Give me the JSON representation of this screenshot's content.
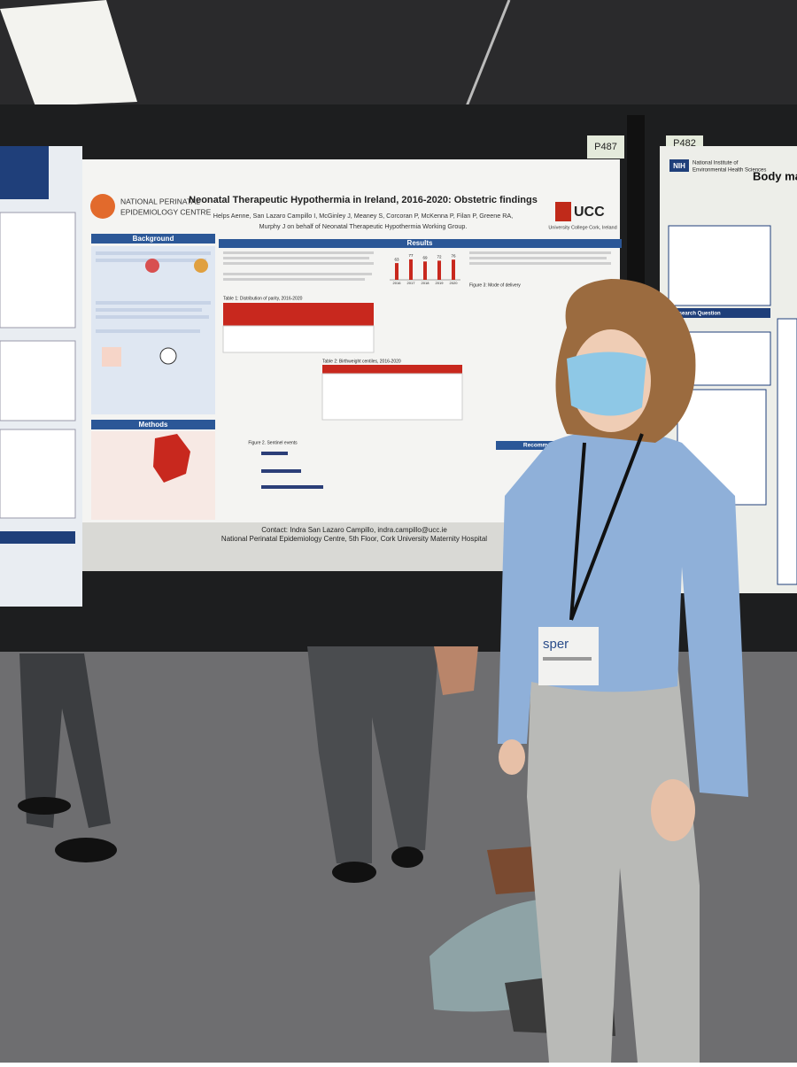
{
  "board_labels": [
    "P487",
    "P482"
  ],
  "poster": {
    "logo_left": [
      "NATIONAL PERINATAL",
      "EPIDEMIOLOGY CENTRE"
    ],
    "title": "Neonatal Therapeutic Hypothermia in Ireland, 2016-2020: Obstetric findings",
    "authors": [
      "Helps Aenne, San Lazaro Campillo I, McGinley J, Meaney S, Corcoran P, McKenna P, Filan P, Greene RA,",
      "Murphy J on behalf of Neonatal Therapeutic Hypothermia Working Group."
    ],
    "logo_right": "UCC",
    "logo_right_sub": "University College Cork, Ireland",
    "sections": {
      "background": "Background",
      "methods": "Methods",
      "results": "Results",
      "recommendations": "Recommendations"
    },
    "chart": {
      "type": "bar",
      "categories": [
        "2016",
        "2017",
        "2018",
        "2019",
        "2020"
      ],
      "values": [
        63,
        77,
        69,
        72,
        76
      ],
      "color": "#c8281e"
    },
    "table1_title": "Table 1: Distribution of parity, 2016-2020",
    "table2_title": "Table 2: Birthweight centiles, 2016-2020",
    "figure2_title": "Figure 2. Sentinel events",
    "figure3_title": "Figure 3: Mode of delivery",
    "contact": "Contact: Indra San Lazaro Campillo, indra.campillo@ucc.ie",
    "address": "National Perinatal Epidemiology Centre, 5th Floor, Cork University Maternity Hospital"
  },
  "right_poster": {
    "logo": "NIH",
    "institute": [
      "National Institute of",
      "Environmental Health Sciences"
    ],
    "heading": "Body ma",
    "section": "Research Question"
  },
  "badge": "sper"
}
